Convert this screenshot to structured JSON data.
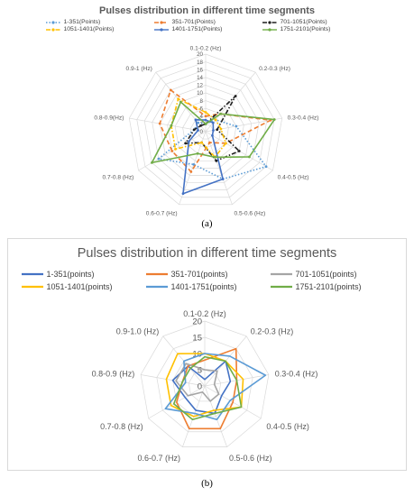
{
  "chart_data": [
    {
      "type": "radar",
      "panel": "a",
      "title": "Pulses distribution in different time segments",
      "categories": [
        "0.1-0.2 (Hz)",
        "0.2-0.3 (Hz)",
        "0.3-0.4 (Hz)",
        "0.4-0.5 (Hz)",
        "0.5-0.6 (Hz)",
        "0.6-0.7 (Hz)",
        "0.7-0.8 (Hz)",
        "0.8-0.9(Hz)",
        "0.9-1 (Hz)"
      ],
      "rlim": [
        0,
        20
      ],
      "ticks": [
        "0",
        "2",
        "4",
        "6",
        "8",
        "10",
        "12",
        "14",
        "16",
        "18",
        "20"
      ],
      "legend_position": "top",
      "series": [
        {
          "name": "1-351(Points)",
          "color": "#5b9bd5",
          "dash": "dot",
          "values": [
            2,
            4,
            8,
            18,
            13,
            9,
            14,
            3,
            3
          ]
        },
        {
          "name": "351-701(Points)",
          "color": "#ed7d31",
          "dash": "dash",
          "values": [
            4,
            6,
            17,
            6,
            3,
            11,
            10,
            12,
            14
          ]
        },
        {
          "name": "701-1051(Points)",
          "color": "#1f1f1f",
          "dash": "dashdot",
          "values": [
            2,
            12,
            3,
            10,
            8,
            3,
            6,
            3,
            2
          ]
        },
        {
          "name": "1051-1401(Points)",
          "color": "#ffc000",
          "dash": "dashdot",
          "values": [
            5,
            4,
            4,
            6,
            7,
            3,
            9,
            9,
            11
          ]
        },
        {
          "name": "1401-1751(Points)",
          "color": "#4472c4",
          "dash": "solid",
          "values": [
            3,
            3,
            2,
            2,
            13,
            17,
            5,
            2,
            4
          ]
        },
        {
          "name": "1751-2101(Points)",
          "color": "#70ad47",
          "dash": "solid",
          "values": [
            2,
            6,
            18,
            13,
            7,
            6,
            16,
            9,
            10
          ]
        }
      ]
    },
    {
      "type": "radar",
      "panel": "b",
      "title": "Pulses distribution in different time segments",
      "categories": [
        "0.1-0.2 (Hz)",
        "0.2-0.3 (Hz)",
        "0.3-0.4 (Hz)",
        "0.4-0.5 (Hz)",
        "0.5-0.6 (Hz)",
        "0.6-0.7 (Hz)",
        "0.7-0.8 (Hz)",
        "0.8-0.9 (Hz)",
        "0.9-1.0 (Hz)"
      ],
      "rlim": [
        0,
        20
      ],
      "ticks": [
        "0",
        "5",
        "10",
        "15",
        "20"
      ],
      "legend_position": "top",
      "series": [
        {
          "name": "1-351(points)",
          "color": "#4472c4",
          "values": [
            2,
            10,
            8,
            6,
            9,
            8,
            7,
            10,
            8
          ]
        },
        {
          "name": "351-701(points)",
          "color": "#ed7d31",
          "values": [
            8,
            15,
            10,
            10,
            14,
            14,
            10,
            7,
            8
          ]
        },
        {
          "name": "701-1051(points)",
          "color": "#a5a5a5",
          "values": [
            5,
            6,
            3,
            5,
            5,
            2,
            6,
            9,
            9
          ]
        },
        {
          "name": "1051-1401(points)",
          "color": "#ffc000",
          "values": [
            10,
            10,
            12,
            13,
            8,
            10,
            12,
            12,
            13
          ]
        },
        {
          "name": "1401-1751(points)",
          "color": "#5b9bd5",
          "values": [
            10,
            12,
            19,
            9,
            11,
            9,
            14,
            6,
            10
          ]
        },
        {
          "name": "1751-2101(points)",
          "color": "#70ad47",
          "values": [
            9,
            10,
            10,
            13,
            9,
            11,
            11,
            7,
            7
          ]
        }
      ]
    }
  ],
  "captions": {
    "a": "(a)",
    "b": "(b)"
  }
}
